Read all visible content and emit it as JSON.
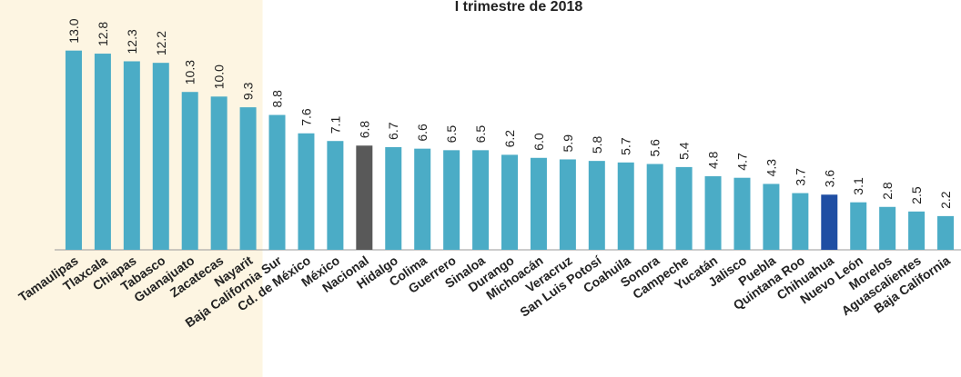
{
  "chart_data": {
    "type": "bar",
    "title": "I trimestre de 2018",
    "categories": [
      "Tamaulipas",
      "Tlaxcala",
      "Chiapas",
      "Tabasco",
      "Guanajuato",
      "Zacatecas",
      "Nayarit",
      "Baja California Sur",
      "Cd. de México",
      "México",
      "Nacional",
      "Hidalgo",
      "Colima",
      "Guerrero",
      "Sinaloa",
      "Durango",
      "Michoacán",
      "Veracruz",
      "San Luis Potosí",
      "Coahuila",
      "Sonora",
      "Campeche",
      "Yucatán",
      "Jalisco",
      "Puebla",
      "Quintana Roo",
      "Chihuahua",
      "Nuevo León",
      "Morelos",
      "Aguascalientes",
      "Baja California"
    ],
    "values": [
      13.0,
      12.8,
      12.3,
      12.2,
      10.3,
      10.0,
      9.3,
      8.8,
      7.6,
      7.1,
      6.8,
      6.7,
      6.6,
      6.5,
      6.5,
      6.2,
      6.0,
      5.9,
      5.8,
      5.7,
      5.6,
      5.4,
      4.8,
      4.7,
      4.3,
      3.7,
      3.6,
      3.1,
      2.8,
      2.5,
      2.2
    ],
    "value_labels": [
      "13.0",
      "12.8",
      "12.3",
      "12.2",
      "10.3",
      "10.0",
      "9.3",
      "8.8",
      "7.6",
      "7.1",
      "6.8",
      "6.7",
      "6.6",
      "6.5",
      "6.5",
      "6.2",
      "6.0",
      "5.9",
      "5.8",
      "5.7",
      "5.6",
      "5.4",
      "4.8",
      "4.7",
      "4.3",
      "3.7",
      "3.6",
      "3.1",
      "2.8",
      "2.5",
      "2.2"
    ],
    "colors": [
      "#4bacc6",
      "#4bacc6",
      "#4bacc6",
      "#4bacc6",
      "#4bacc6",
      "#4bacc6",
      "#4bacc6",
      "#4bacc6",
      "#4bacc6",
      "#4bacc6",
      "#595959",
      "#4bacc6",
      "#4bacc6",
      "#4bacc6",
      "#4bacc6",
      "#4bacc6",
      "#4bacc6",
      "#4bacc6",
      "#4bacc6",
      "#4bacc6",
      "#4bacc6",
      "#4bacc6",
      "#4bacc6",
      "#4bacc6",
      "#4bacc6",
      "#4bacc6",
      "#1f4ea3",
      "#4bacc6",
      "#4bacc6",
      "#4bacc6",
      "#4bacc6"
    ],
    "highlight_band": {
      "from": 0,
      "to": 6,
      "color": "#fdf5e2"
    },
    "ylim": [
      0,
      16.3
    ]
  }
}
